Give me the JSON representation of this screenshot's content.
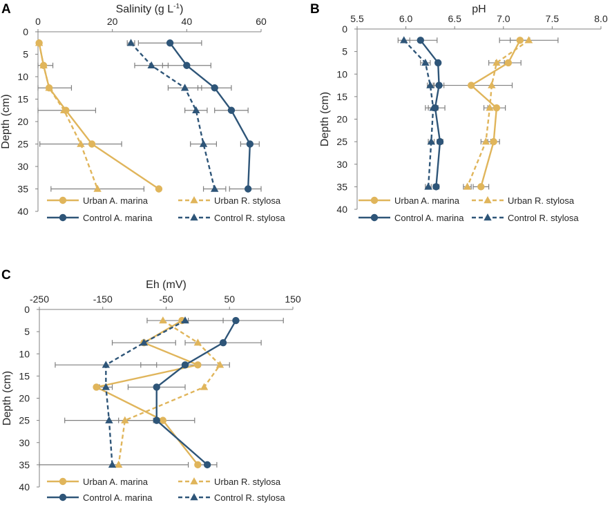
{
  "colors": {
    "urban": "#E0B55B",
    "control": "#2E5578",
    "errorbar": "#7F7F7F",
    "axis": "#808080"
  },
  "legend_labels": [
    "Urban A. marina",
    "Urban R. stylosa",
    "Control A. marina",
    "Control R. stylosa"
  ],
  "chart_data": [
    {
      "panel": "A",
      "type": "line",
      "title": "",
      "xlabel": "Salinity (g L-1)",
      "xlabel_main": "Salinity (g L",
      "xlabel_sup": "-1",
      "xlabel_end": ")",
      "ylabel": "Depth (cm)",
      "xlim": [
        0,
        60
      ],
      "ylim": [
        0,
        40
      ],
      "xticks": [
        0,
        20,
        40,
        60
      ],
      "yticks": [
        0,
        5,
        10,
        15,
        20,
        25,
        30,
        35,
        40
      ],
      "legend_position": "bottom",
      "series": [
        {
          "name": "Urban A. marina",
          "color": "#E0B55B",
          "dash": false,
          "marker": "circle",
          "x": [
            0.3,
            1.5,
            3.0,
            7.5,
            14.5,
            32.5
          ],
          "y": [
            2.5,
            7.5,
            12.5,
            17.5,
            25,
            35
          ],
          "err": [
            0,
            0,
            0,
            0,
            0,
            0
          ]
        },
        {
          "name": "Urban R. stylosa",
          "color": "#E0B55B",
          "dash": true,
          "marker": "triangle",
          "x": [
            0.3,
            1.5,
            3.0,
            7.0,
            11.5,
            16.0
          ],
          "y": [
            2.5,
            7.5,
            12.5,
            17.5,
            25,
            35
          ],
          "err": [
            0.3,
            2.5,
            6.0,
            8.5,
            11.0,
            12.5
          ]
        },
        {
          "name": "Control A. marina",
          "color": "#2E5578",
          "dash": false,
          "marker": "circle",
          "x": [
            35.5,
            40.0,
            47.5,
            52.0,
            57.0,
            56.5
          ],
          "y": [
            2.5,
            7.5,
            12.5,
            17.5,
            25,
            35
          ],
          "err": [
            8.5,
            6.5,
            4.5,
            4.5,
            2.5,
            5.0
          ]
        },
        {
          "name": "Control R. stylosa",
          "color": "#2E5578",
          "dash": true,
          "marker": "triangle",
          "x": [
            25.0,
            30.5,
            39.5,
            42.5,
            44.5,
            47.5
          ],
          "y": [
            2.5,
            7.5,
            12.5,
            17.5,
            25,
            35
          ],
          "err": [
            1.0,
            4.5,
            4.5,
            3.0,
            3.5,
            3.0
          ]
        }
      ]
    },
    {
      "panel": "B",
      "type": "line",
      "title": "",
      "xlabel": "pH",
      "xlabel_main": "pH",
      "xlabel_sup": "",
      "xlabel_end": "",
      "ylabel": "Depth (cm)",
      "xlim": [
        5.5,
        8.0
      ],
      "ylim": [
        0,
        40
      ],
      "xticks": [
        5.5,
        6.0,
        6.5,
        7.0,
        7.5,
        8.0
      ],
      "yticks": [
        0,
        5,
        10,
        15,
        20,
        25,
        30,
        35,
        40
      ],
      "legend_position": "bottom",
      "series": [
        {
          "name": "Urban A. marina",
          "color": "#E0B55B",
          "dash": false,
          "marker": "circle",
          "x": [
            7.17,
            7.05,
            6.67,
            6.93,
            6.9,
            6.77
          ],
          "y": [
            2.5,
            7.5,
            12.5,
            17.5,
            25,
            35
          ],
          "err": [
            0.1,
            0.13,
            0.42,
            0.09,
            0.06,
            0.08
          ]
        },
        {
          "name": "Urban R. stylosa",
          "color": "#E0B55B",
          "dash": true,
          "marker": "triangle",
          "x": [
            7.26,
            6.93,
            6.88,
            6.86,
            6.82,
            6.63
          ],
          "y": [
            2.5,
            7.5,
            12.5,
            17.5,
            25,
            35
          ],
          "err": [
            0.3,
            0.08,
            0.0,
            0.06,
            0.05,
            0.04
          ]
        },
        {
          "name": "Control A. marina",
          "color": "#2E5578",
          "dash": false,
          "marker": "circle",
          "x": [
            6.15,
            6.33,
            6.34,
            6.3,
            6.35,
            6.31
          ],
          "y": [
            2.5,
            7.5,
            12.5,
            17.5,
            25,
            35
          ],
          "err": [
            0.17,
            0.0,
            0.05,
            0.1,
            0.03,
            0.03
          ]
        },
        {
          "name": "Control R. stylosa",
          "color": "#2E5578",
          "dash": true,
          "marker": "triangle",
          "x": [
            5.98,
            6.2,
            6.25,
            6.28,
            6.26,
            6.23
          ],
          "y": [
            2.5,
            7.5,
            12.5,
            17.5,
            25,
            35
          ],
          "err": [
            0.06,
            0.05,
            0.03,
            0.05,
            0.03,
            0.03
          ]
        }
      ]
    },
    {
      "panel": "C",
      "type": "line",
      "title": "",
      "xlabel": "Eh (mV)",
      "xlabel_main": "Eh (mV)",
      "xlabel_sup": "",
      "xlabel_end": "",
      "ylabel": "Depth (cm)",
      "xlim": [
        -250,
        150
      ],
      "ylim": [
        0,
        40
      ],
      "xticks": [
        -250,
        -150,
        -50,
        50,
        150
      ],
      "yticks": [
        0,
        5,
        10,
        15,
        20,
        25,
        30,
        35,
        40
      ],
      "legend_position": "bottom",
      "series": [
        {
          "name": "Urban A. marina",
          "color": "#E0B55B",
          "dash": false,
          "marker": "circle",
          "x": [
            -25,
            -85,
            0,
            -160,
            -55,
            0
          ],
          "y": [
            2.5,
            7.5,
            12.5,
            17.5,
            25,
            35
          ],
          "err": [
            0,
            0,
            0,
            0,
            0,
            0
          ]
        },
        {
          "name": "Urban R. stylosa",
          "color": "#E0B55B",
          "dash": true,
          "marker": "triangle",
          "x": [
            -55,
            0,
            35,
            10,
            -115,
            -125
          ],
          "y": [
            2.5,
            7.5,
            12.5,
            17.5,
            25,
            35
          ],
          "err": [
            0,
            0,
            0,
            0,
            0,
            0
          ]
        },
        {
          "name": "Control A. marina",
          "color": "#2E5578",
          "dash": false,
          "marker": "circle",
          "x": [
            60,
            40,
            -20,
            -65,
            -65,
            15
          ],
          "y": [
            2.5,
            7.5,
            12.5,
            17.5,
            25,
            35
          ],
          "err": [
            75,
            60,
            70,
            45,
            60,
            15
          ]
        },
        {
          "name": "Control R. stylosa",
          "color": "#2E5578",
          "dash": true,
          "marker": "triangle",
          "x": [
            -20,
            -85,
            -145,
            -145,
            -140,
            -135
          ],
          "y": [
            2.5,
            7.5,
            12.5,
            17.5,
            25,
            35
          ],
          "err": [
            60,
            50,
            80,
            10,
            70,
            120
          ]
        }
      ]
    }
  ]
}
